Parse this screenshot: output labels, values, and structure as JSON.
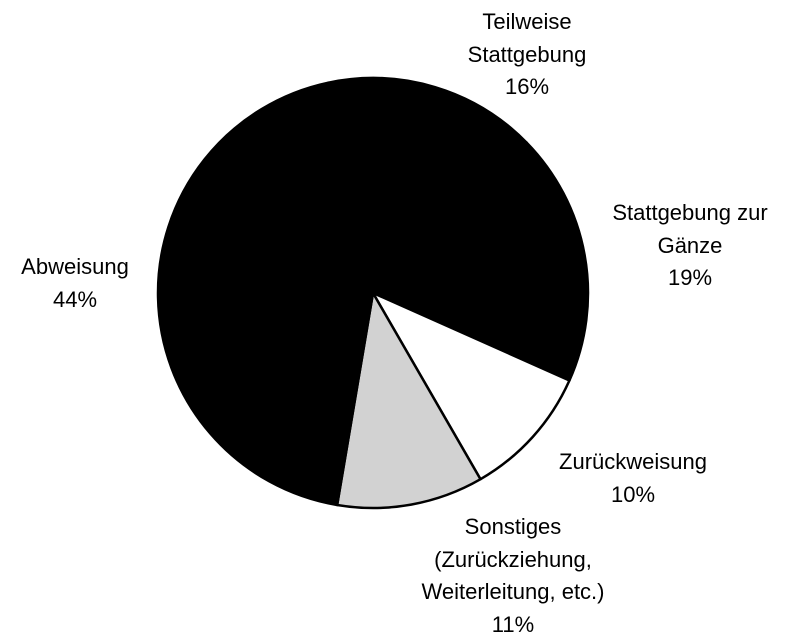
{
  "chart_data": {
    "type": "pie",
    "categories": [
      "Teilweise\nStattgebung",
      "Stattgebung zur\nGänze",
      "Zurückweisung",
      "Sonstiges\n(Zurückziehung,\nWeiterleitung, etc.)",
      "Abweisung"
    ],
    "values": [
      16,
      19,
      10,
      11,
      44
    ],
    "value_labels": [
      "16%",
      "19%",
      "10%",
      "11%",
      "44%"
    ],
    "colors": [
      "#000000",
      "#000000",
      "#ffffff",
      "#d2d2d2",
      "#000000"
    ]
  }
}
